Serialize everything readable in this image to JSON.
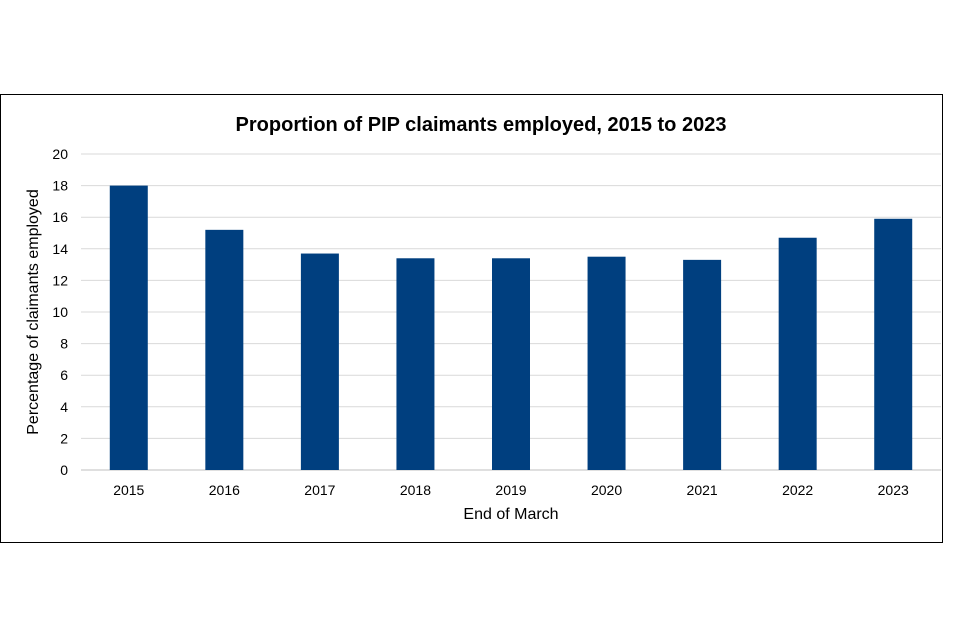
{
  "chart_data": {
    "type": "bar",
    "title": "Proportion of PIP claimants employed, 2015 to 2023",
    "xlabel": "End of March",
    "ylabel": "Percentage of claimants employed",
    "categories": [
      "2015",
      "2016",
      "2017",
      "2018",
      "2019",
      "2020",
      "2021",
      "2022",
      "2023"
    ],
    "values": [
      18.0,
      15.2,
      13.7,
      13.4,
      13.4,
      13.5,
      13.3,
      14.7,
      15.9
    ],
    "ylim": [
      0,
      20
    ],
    "yticks": [
      "0",
      "2",
      "4",
      "6",
      "8",
      "10",
      "12",
      "14",
      "16",
      "18",
      "20"
    ],
    "grid": true,
    "legend": "none",
    "bar_color": "#003f7f"
  }
}
